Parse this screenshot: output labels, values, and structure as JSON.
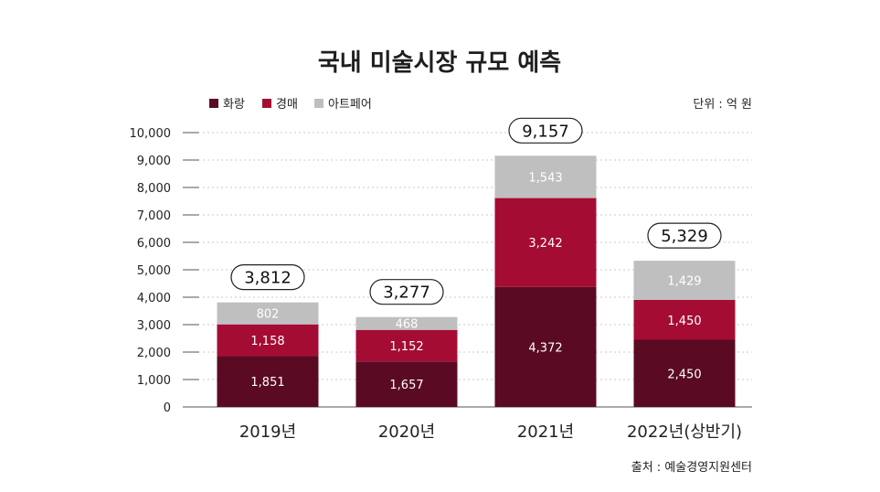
{
  "chart_data": {
    "type": "bar",
    "stacked": true,
    "title": "국내 미술시장 규모 예측",
    "unit_label": "단위 : 억 원",
    "source": "출처 : 예술경영지원센터",
    "categories": [
      "2019년",
      "2020년",
      "2021년",
      "2022년(상반기)"
    ],
    "series": [
      {
        "name": "화랑",
        "color": "#5a0a22",
        "values": [
          1851,
          1657,
          4372,
          2450
        ]
      },
      {
        "name": "경매",
        "color": "#a50c34",
        "values": [
          1158,
          1152,
          3242,
          1450
        ]
      },
      {
        "name": "아트페어",
        "color": "#bfbfbf",
        "values": [
          802,
          468,
          1543,
          1429
        ]
      }
    ],
    "value_labels": [
      [
        "1,851",
        "1,657",
        "4,372",
        "2,450"
      ],
      [
        "1,158",
        "1,152",
        "3,242",
        "1,450"
      ],
      [
        "802",
        "468",
        "1,543",
        "1,429"
      ]
    ],
    "totals": [
      3812,
      3277,
      9157,
      5329
    ],
    "total_labels": [
      "3,812",
      "3,277",
      "9,157",
      "5,329"
    ],
    "yticks": [
      0,
      1000,
      2000,
      3000,
      4000,
      5000,
      6000,
      7000,
      8000,
      9000,
      10000
    ],
    "ytick_labels": [
      "0",
      "1,000",
      "2,000",
      "3,000",
      "4,000",
      "5,000",
      "6,000",
      "7,000",
      "8,000",
      "9,000",
      "10,000"
    ],
    "ylim": [
      0,
      10000
    ],
    "grid": true,
    "legend_position": "top-left"
  }
}
